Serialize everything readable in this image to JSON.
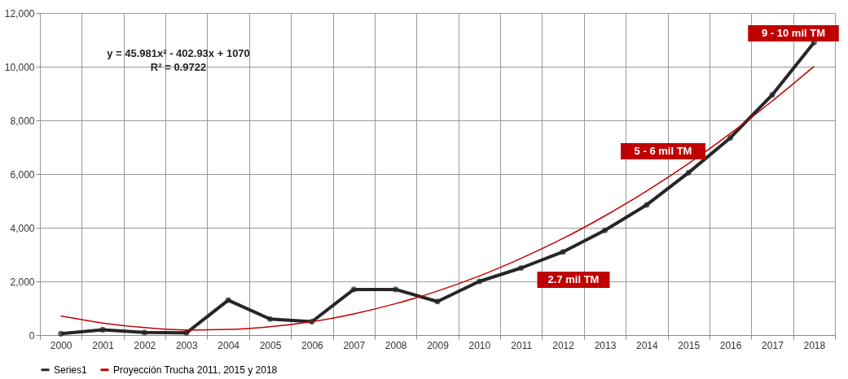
{
  "chart_data": {
    "type": "line",
    "categories": [
      "2000",
      "2001",
      "2002",
      "2003",
      "2004",
      "2005",
      "2006",
      "2007",
      "2008",
      "2009",
      "2010",
      "2011",
      "2012",
      "2013",
      "2014",
      "2015",
      "2016",
      "2017",
      "2018"
    ],
    "series": [
      {
        "name": "Series1",
        "color": "#262626",
        "marker": "circle",
        "values": [
          50,
          200,
          100,
          80,
          1300,
          600,
          500,
          1700,
          1700,
          1250,
          2000,
          2500,
          3100,
          3900,
          4850,
          6050,
          7350,
          8950,
          10900
        ]
      },
      {
        "name": "Proyección Trucha 2011, 2015 y 2018",
        "color": "#c00000",
        "marker": "none",
        "values": [
          710,
          450,
          280,
          190,
          210,
          310,
          500,
          790,
          1170,
          1640,
          2200,
          2860,
          3600,
          4440,
          5370,
          6390,
          7510,
          8720,
          10010
        ]
      }
    ],
    "ylim": [
      0,
      12000
    ],
    "yticks": [
      0,
      {
        "value": 2000,
        "label": "2,000"
      },
      {
        "value": 4000,
        "label": "4,000"
      },
      {
        "value": 6000,
        "label": "6,000"
      },
      {
        "value": 8000,
        "label": "8,000"
      },
      {
        "value": 10000,
        "label": "10,000"
      },
      {
        "value": 12000,
        "label": "12,000"
      }
    ],
    "grid": true,
    "legend": "bottom",
    "annotations": [
      "y = 45.981x² - 402.93x + 1070",
      "R² = 0.9722",
      "2.7 mil TM",
      "5 - 6 mil TM",
      "9 - 10 mil TM"
    ]
  }
}
